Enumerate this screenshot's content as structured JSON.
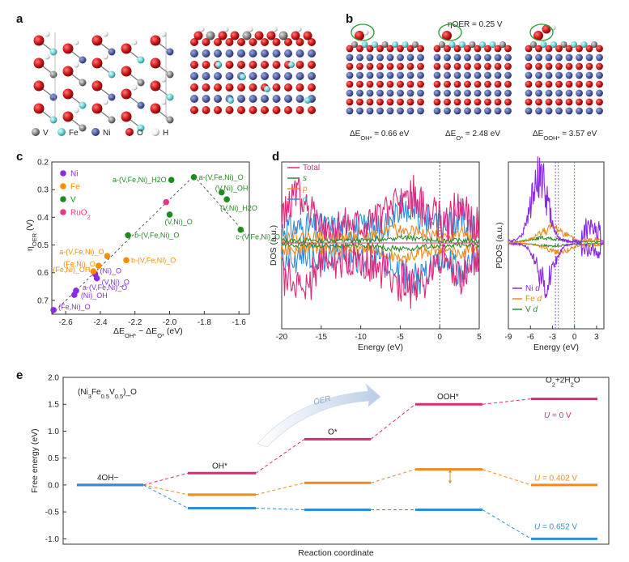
{
  "panels": {
    "a": {
      "label": "a",
      "legend": [
        {
          "symbol": "V",
          "name": "V",
          "color": "#8a8a8a"
        },
        {
          "symbol": "Fe",
          "name": "Fe",
          "color": "#6fd3d8"
        },
        {
          "symbol": "Ni",
          "name": "Ni",
          "color": "#5564a8"
        },
        {
          "symbol": "O",
          "name": "O",
          "color": "#d21818"
        },
        {
          "symbol": "H",
          "name": "H",
          "color": "#f2f2f2"
        }
      ]
    },
    "b": {
      "label": "b",
      "eta_text": "ηOER = 0.25 V",
      "energies": [
        {
          "prefix": "ΔE",
          "sub": "OH*",
          "suffix": " = 0.66 eV"
        },
        {
          "prefix": "ΔE",
          "sub": "O*",
          "suffix": " = 2.48 eV"
        },
        {
          "prefix": "ΔE",
          "sub": "OOH*",
          "suffix": " = 3.57 eV"
        }
      ]
    }
  },
  "chart_data": [
    {
      "panel": "c",
      "type": "scatter",
      "xlabel": {
        "prefix": "ΔE",
        "sub1": "OH*",
        "mid": " − ΔE",
        "sub2": "O*",
        "suffix": " (eV)"
      },
      "ylabel": {
        "prefix": "η",
        "sub": "OER",
        "suffix": " (V)"
      },
      "xlim": [
        -2.68,
        -1.54
      ],
      "ylim": [
        0.2,
        0.75
      ],
      "y_inverted": true,
      "xticks": [
        "-2.6",
        "-2.4",
        "-2.2",
        "-2.0",
        "-1.8",
        "-1.6"
      ],
      "xtick_values": [
        -2.6,
        -2.4,
        -2.2,
        -2.0,
        -1.8,
        -1.6
      ],
      "yticks": [
        "0.2",
        "0.3",
        "0.4",
        "0.5",
        "0.6",
        "0.7"
      ],
      "ytick_values": [
        0.2,
        0.3,
        0.4,
        0.5,
        0.6,
        0.7
      ],
      "legend": [
        {
          "name": "Ni",
          "color": "#8a2be2"
        },
        {
          "name": "Fe",
          "color": "#ff8c00"
        },
        {
          "name": "V",
          "color": "#1e8b1e"
        },
        {
          "name": "RuO2",
          "color": "#e8388a"
        }
      ],
      "points": [
        {
          "x": -2.67,
          "y": 0.735,
          "element": "Ni",
          "label": "(Fe,Ni)_O"
        },
        {
          "x": -2.55,
          "y": 0.68,
          "element": "Ni",
          "label": "(Ni)_OH"
        },
        {
          "x": -2.54,
          "y": 0.665,
          "element": "Ni",
          "label": "a-(V,Fe,Ni)_O"
        },
        {
          "x": -2.42,
          "y": 0.62,
          "element": "Ni",
          "label": "(V,Ni)_O"
        },
        {
          "x": -2.43,
          "y": 0.605,
          "element": "Ni",
          "label": "(Ni)_O"
        },
        {
          "x": -2.44,
          "y": 0.595,
          "element": "Fe",
          "label": "(Fe,Ni)_OH"
        },
        {
          "x": -2.41,
          "y": 0.575,
          "element": "Fe",
          "label": "(Fe,Ni)_O"
        },
        {
          "x": -2.36,
          "y": 0.54,
          "element": "Fe",
          "label": "a-(V,Fe,Ni)_O"
        },
        {
          "x": -2.25,
          "y": 0.555,
          "element": "Fe",
          "label": "b-(V,Fe,Ni)_O"
        },
        {
          "x": -2.24,
          "y": 0.465,
          "element": "V",
          "label": "b-(V,Fe,Ni)_O"
        },
        {
          "x": -2.0,
          "y": 0.39,
          "element": "V",
          "label": "(V,Ni)_O"
        },
        {
          "x": -1.99,
          "y": 0.265,
          "element": "V",
          "label": "a-(V,Fe,Ni)_H2O"
        },
        {
          "x": -1.86,
          "y": 0.255,
          "element": "V",
          "label": "a-(V,Fe,Ni)_O"
        },
        {
          "x": -1.7,
          "y": 0.31,
          "element": "V",
          "label": "(V,Ni)_OH"
        },
        {
          "x": -1.67,
          "y": 0.335,
          "element": "V",
          "label": "(V,Ni)_H2O"
        },
        {
          "x": -1.59,
          "y": 0.445,
          "element": "V",
          "label": "c-(V,Fe,Ni)_O"
        },
        {
          "x": -2.02,
          "y": 0.345,
          "element": "RuO2",
          "label": ""
        }
      ]
    },
    {
      "panel": "d-left",
      "type": "line",
      "xlabel": "Energy (eV)",
      "ylabel": "DOS (a.u.)",
      "xlim": [
        -20,
        5
      ],
      "xticks": [
        "-20",
        "-15",
        "-10",
        "-5",
        "0",
        "5"
      ],
      "xtick_values": [
        -20,
        -15,
        -10,
        -5,
        0,
        5
      ],
      "series": [
        {
          "name": "Total",
          "color": "#e0287a"
        },
        {
          "name": "s",
          "color": "#2e8b2e"
        },
        {
          "name": "p",
          "color": "#f08a1c"
        },
        {
          "name": "d",
          "color": "#2e8fd8"
        }
      ]
    },
    {
      "panel": "d-right",
      "type": "line",
      "xlabel": "Energy (eV)",
      "ylabel": "PDOS (a.u.)",
      "xlim": [
        -9,
        4
      ],
      "xticks": [
        "-9",
        "-6",
        "-3",
        "0",
        "3"
      ],
      "xtick_values": [
        -9,
        -6,
        -3,
        0,
        3
      ],
      "series": [
        {
          "name": "Ni d",
          "color": "#8a2be2"
        },
        {
          "name": "Fe d",
          "color": "#f08a1c"
        },
        {
          "name": "V d",
          "color": "#2e8b2e"
        }
      ]
    },
    {
      "panel": "e",
      "type": "line",
      "xlabel": "Reaction coordinate",
      "ylabel": "Free energy (eV)",
      "ylim": [
        -1.1,
        2.0
      ],
      "yticks": [
        "2.0",
        "1.5",
        "1.0",
        "0.5",
        "0.0",
        "-0.5",
        "-1.0"
      ],
      "ytick_values": [
        2.0,
        1.5,
        1.0,
        0.5,
        0.0,
        -0.5,
        -1.0
      ],
      "composition": {
        "text": "(Ni3Fe0.5V0.5)_O"
      },
      "arrow_label": "OER",
      "states": [
        "4OH−",
        "OH*",
        "O*",
        "OOH*",
        "O2+2H2O"
      ],
      "series": [
        {
          "name": "U = 0 V",
          "color": "#e0287a",
          "values": [
            0.0,
            0.22,
            0.85,
            1.5,
            1.6
          ]
        },
        {
          "name": "U = 0.402 V",
          "color": "#f08a1c",
          "values": [
            0.0,
            -0.18,
            0.04,
            0.29,
            0.0
          ]
        },
        {
          "name": "U = 0.652 V",
          "color": "#2e8fd8",
          "values": [
            0.0,
            -0.43,
            -0.46,
            -0.46,
            -1.0
          ]
        }
      ]
    }
  ]
}
